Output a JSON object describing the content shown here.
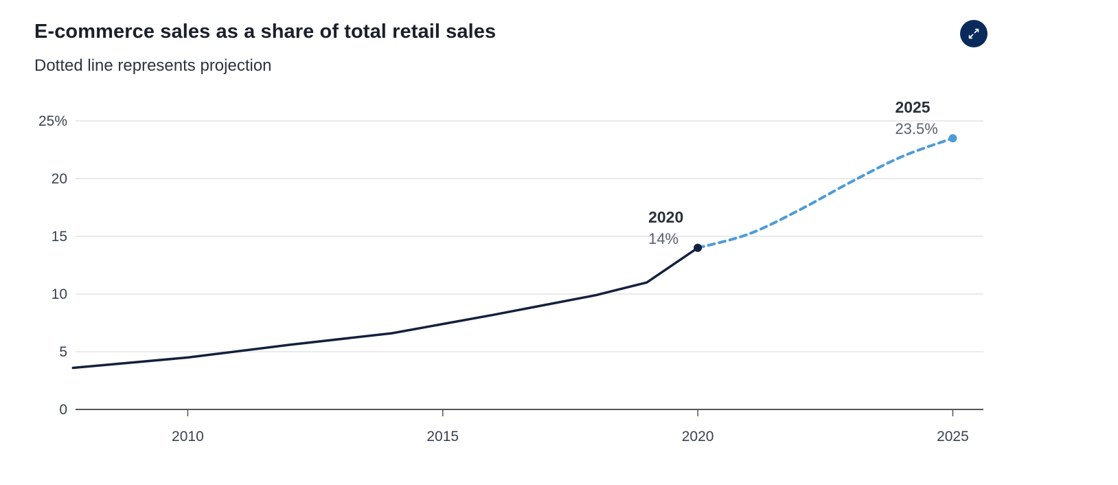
{
  "header": {
    "title": "E-commerce sales as a share of total retail sales",
    "subtitle": "Dotted line represents projection",
    "expand_icon": "expand-arrows-icon"
  },
  "colors": {
    "actual_line": "#13213c",
    "projection_line": "#4d9bd8",
    "grid": "#dedede",
    "axis": "#555555",
    "expand_button": "#0b2a5c"
  },
  "chart_data": {
    "type": "line",
    "title": "E-commerce sales as a share of total retail sales",
    "subtitle": "Dotted line represents projection",
    "xlabel": "",
    "ylabel": "",
    "xlim": [
      2007.8,
      2025.6
    ],
    "ylim": [
      0,
      25
    ],
    "x_ticks": [
      2010,
      2015,
      2020,
      2025
    ],
    "x_tick_labels": [
      "2010",
      "2015",
      "2020",
      "2025"
    ],
    "y_ticks": [
      0,
      5,
      10,
      15,
      20,
      25
    ],
    "y_tick_labels": [
      "0",
      "5",
      "10",
      "15",
      "20",
      "25%"
    ],
    "grid": true,
    "series": [
      {
        "style": "solid",
        "x": [
          2007.75,
          2010,
          2012,
          2014,
          2016,
          2018,
          2019,
          2020
        ],
        "values": [
          3.6,
          4.5,
          5.6,
          6.6,
          8.2,
          9.9,
          11.0,
          14.0
        ]
      },
      {
        "style": "dotted",
        "x": [
          2020,
          2021,
          2022,
          2023,
          2024,
          2025
        ],
        "values": [
          14.0,
          15.2,
          17.3,
          19.7,
          21.9,
          23.5
        ]
      }
    ],
    "annotations": [
      {
        "x": 2020,
        "y": 14.0,
        "label": "2020",
        "value": "14%"
      },
      {
        "x": 2025,
        "y": 23.5,
        "label": "2025",
        "value": "23.5%"
      }
    ]
  }
}
